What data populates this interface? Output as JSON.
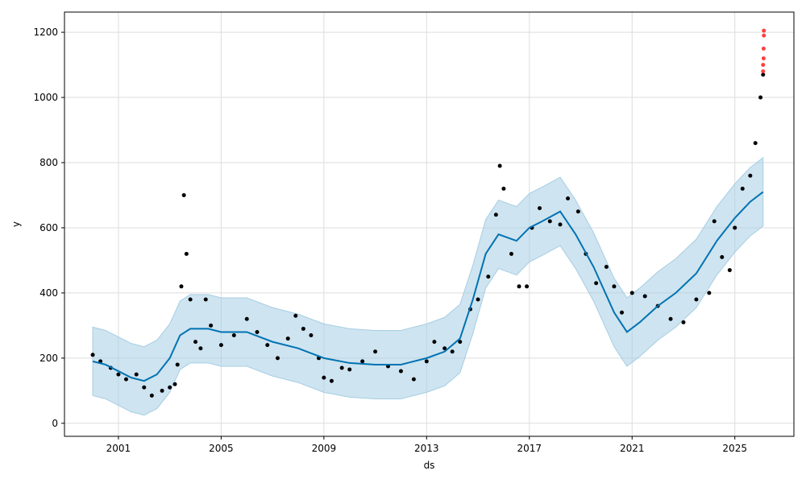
{
  "chart_data": {
    "type": "line",
    "title": "",
    "xlabel": "ds",
    "ylabel": "y",
    "grid": true,
    "xlim": [
      1998.9,
      2027.3
    ],
    "ylim": [
      -40,
      1262
    ],
    "x_ticks": [
      2001,
      2005,
      2009,
      2013,
      2017,
      2021,
      2025
    ],
    "y_ticks": [
      0,
      200,
      400,
      600,
      800,
      1000,
      1200
    ],
    "colors": {
      "observed": "#000000",
      "forecast_line": "#0072B2",
      "uncertainty": "#a6cee3",
      "recent": "#ff2020"
    },
    "trend": [
      [
        2000.0,
        190
      ],
      [
        2000.5,
        180
      ],
      [
        2001.0,
        160
      ],
      [
        2001.5,
        140
      ],
      [
        2002.0,
        130
      ],
      [
        2002.5,
        150
      ],
      [
        2003.0,
        200
      ],
      [
        2003.4,
        270
      ],
      [
        2003.8,
        290
      ],
      [
        2004.5,
        290
      ],
      [
        2005.0,
        280
      ],
      [
        2006.0,
        280
      ],
      [
        2007.0,
        250
      ],
      [
        2008.0,
        230
      ],
      [
        2009.0,
        200
      ],
      [
        2010.0,
        185
      ],
      [
        2011.0,
        180
      ],
      [
        2012.0,
        180
      ],
      [
        2013.0,
        200
      ],
      [
        2013.7,
        220
      ],
      [
        2014.3,
        260
      ],
      [
        2014.8,
        380
      ],
      [
        2015.3,
        520
      ],
      [
        2015.8,
        580
      ],
      [
        2016.5,
        560
      ],
      [
        2017.0,
        600
      ],
      [
        2017.5,
        620
      ],
      [
        2018.2,
        650
      ],
      [
        2018.8,
        580
      ],
      [
        2019.5,
        480
      ],
      [
        2020.3,
        340
      ],
      [
        2020.8,
        280
      ],
      [
        2021.3,
        310
      ],
      [
        2022.0,
        360
      ],
      [
        2022.7,
        400
      ],
      [
        2023.5,
        460
      ],
      [
        2024.3,
        560
      ],
      [
        2025.0,
        630
      ],
      [
        2025.6,
        680
      ],
      [
        2026.1,
        710
      ]
    ],
    "uncertainty_halfwidth": 105,
    "observed": [
      [
        2000.0,
        210
      ],
      [
        2000.3,
        190
      ],
      [
        2000.7,
        170
      ],
      [
        2001.0,
        150
      ],
      [
        2001.3,
        135
      ],
      [
        2001.7,
        150
      ],
      [
        2002.0,
        110
      ],
      [
        2002.3,
        85
      ],
      [
        2002.7,
        100
      ],
      [
        2003.0,
        110
      ],
      [
        2003.2,
        120
      ],
      [
        2003.3,
        180
      ],
      [
        2003.45,
        420
      ],
      [
        2003.55,
        700
      ],
      [
        2003.65,
        520
      ],
      [
        2003.8,
        380
      ],
      [
        2004.0,
        250
      ],
      [
        2004.2,
        230
      ],
      [
        2004.4,
        380
      ],
      [
        2004.6,
        300
      ],
      [
        2005.0,
        240
      ],
      [
        2005.5,
        270
      ],
      [
        2006.0,
        320
      ],
      [
        2006.4,
        280
      ],
      [
        2006.8,
        240
      ],
      [
        2007.2,
        200
      ],
      [
        2007.6,
        260
      ],
      [
        2007.9,
        330
      ],
      [
        2008.2,
        290
      ],
      [
        2008.5,
        270
      ],
      [
        2008.8,
        200
      ],
      [
        2009.0,
        140
      ],
      [
        2009.3,
        130
      ],
      [
        2009.7,
        170
      ],
      [
        2010.0,
        165
      ],
      [
        2010.5,
        190
      ],
      [
        2011.0,
        220
      ],
      [
        2011.5,
        175
      ],
      [
        2012.0,
        160
      ],
      [
        2012.5,
        135
      ],
      [
        2013.0,
        190
      ],
      [
        2013.3,
        250
      ],
      [
        2013.7,
        230
      ],
      [
        2014.0,
        220
      ],
      [
        2014.3,
        250
      ],
      [
        2014.7,
        350
      ],
      [
        2015.0,
        380
      ],
      [
        2015.4,
        450
      ],
      [
        2015.7,
        640
      ],
      [
        2015.85,
        790
      ],
      [
        2016.0,
        720
      ],
      [
        2016.3,
        520
      ],
      [
        2016.6,
        420
      ],
      [
        2016.9,
        420
      ],
      [
        2017.1,
        600
      ],
      [
        2017.4,
        660
      ],
      [
        2017.8,
        620
      ],
      [
        2018.2,
        610
      ],
      [
        2018.5,
        690
      ],
      [
        2018.9,
        650
      ],
      [
        2019.2,
        520
      ],
      [
        2019.6,
        430
      ],
      [
        2020.0,
        480
      ],
      [
        2020.3,
        420
      ],
      [
        2020.6,
        340
      ],
      [
        2021.0,
        400
      ],
      [
        2021.5,
        390
      ],
      [
        2022.0,
        360
      ],
      [
        2022.5,
        320
      ],
      [
        2023.0,
        310
      ],
      [
        2023.5,
        380
      ],
      [
        2024.0,
        400
      ],
      [
        2024.2,
        620
      ],
      [
        2024.5,
        510
      ],
      [
        2024.8,
        470
      ],
      [
        2025.0,
        600
      ],
      [
        2025.3,
        720
      ],
      [
        2025.6,
        760
      ],
      [
        2025.8,
        860
      ],
      [
        2026.0,
        1000
      ],
      [
        2026.1,
        1070
      ]
    ],
    "recent_points": [
      [
        2026.1,
        1080
      ],
      [
        2026.1,
        1100
      ],
      [
        2026.12,
        1120
      ],
      [
        2026.12,
        1150
      ],
      [
        2026.13,
        1190
      ],
      [
        2026.13,
        1205
      ]
    ]
  }
}
